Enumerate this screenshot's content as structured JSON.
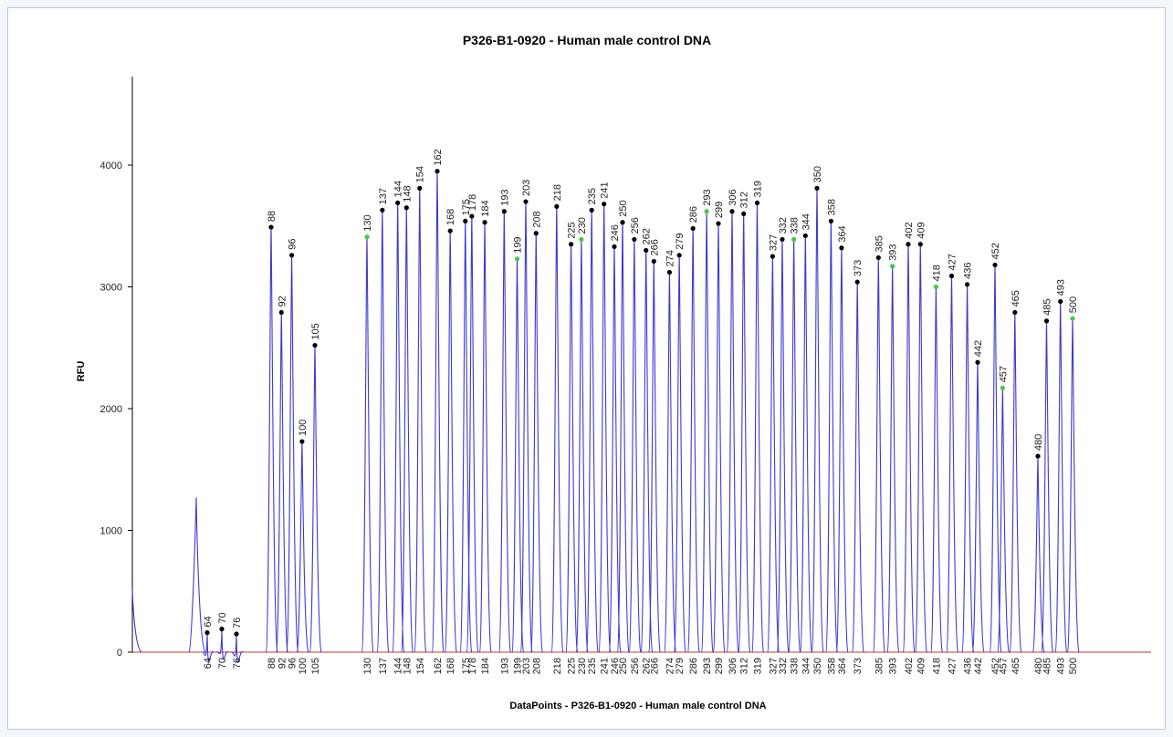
{
  "chart_data": {
    "type": "line",
    "title": "P326-B1-0920 - Human male control DNA",
    "xlabel": "DataPoints - P326-B1-0920 - Human male control DNA",
    "ylabel": "RFU",
    "ylim": [
      0,
      4500
    ],
    "yticks": [
      0,
      1000,
      2000,
      3000,
      4000
    ],
    "grid": false,
    "colors": {
      "trace": "#3b3bd1",
      "baseline": "#c0392b",
      "axis": "#000000",
      "marker": "#000000",
      "marker_flagged": "#44c944"
    },
    "unlabeled_peaks": [
      {
        "pos": 48,
        "y": 520
      },
      {
        "pos": 59,
        "y": 1270
      }
    ],
    "peaks": [
      {
        "label": "64",
        "y": 160,
        "flag": false
      },
      {
        "label": "70",
        "y": 190,
        "flag": false
      },
      {
        "label": "76",
        "y": 150,
        "flag": false
      },
      {
        "label": "88",
        "y": 3490,
        "flag": false
      },
      {
        "label": "92",
        "y": 2790,
        "flag": false
      },
      {
        "label": "96",
        "y": 3260,
        "flag": false
      },
      {
        "label": "100",
        "y": 1730,
        "flag": false
      },
      {
        "label": "105",
        "y": 2520,
        "flag": false
      },
      {
        "label": "130",
        "y": 3410,
        "flag": true
      },
      {
        "label": "137",
        "y": 3630,
        "flag": false
      },
      {
        "label": "144",
        "y": 3690,
        "flag": false
      },
      {
        "label": "148",
        "y": 3650,
        "flag": false
      },
      {
        "label": "154",
        "y": 3810,
        "flag": false
      },
      {
        "label": "162",
        "y": 3950,
        "flag": false
      },
      {
        "label": "168",
        "y": 3460,
        "flag": false
      },
      {
        "label": "175",
        "y": 3540,
        "flag": false
      },
      {
        "label": "178",
        "y": 3580,
        "flag": false
      },
      {
        "label": "184",
        "y": 3530,
        "flag": false
      },
      {
        "label": "193",
        "y": 3620,
        "flag": false
      },
      {
        "label": "199",
        "y": 3230,
        "flag": true
      },
      {
        "label": "203",
        "y": 3700,
        "flag": false
      },
      {
        "label": "208",
        "y": 3440,
        "flag": false
      },
      {
        "label": "218",
        "y": 3660,
        "flag": false
      },
      {
        "label": "225",
        "y": 3350,
        "flag": false
      },
      {
        "label": "230",
        "y": 3390,
        "flag": true
      },
      {
        "label": "235",
        "y": 3630,
        "flag": false
      },
      {
        "label": "241",
        "y": 3680,
        "flag": false
      },
      {
        "label": "246",
        "y": 3330,
        "flag": false
      },
      {
        "label": "250",
        "y": 3530,
        "flag": false
      },
      {
        "label": "256",
        "y": 3390,
        "flag": false
      },
      {
        "label": "262",
        "y": 3300,
        "flag": false
      },
      {
        "label": "266",
        "y": 3210,
        "flag": false
      },
      {
        "label": "274",
        "y": 3120,
        "flag": false
      },
      {
        "label": "279",
        "y": 3260,
        "flag": false
      },
      {
        "label": "286",
        "y": 3480,
        "flag": false
      },
      {
        "label": "293",
        "y": 3620,
        "flag": true
      },
      {
        "label": "299",
        "y": 3520,
        "flag": false
      },
      {
        "label": "306",
        "y": 3620,
        "flag": false
      },
      {
        "label": "312",
        "y": 3600,
        "flag": false
      },
      {
        "label": "319",
        "y": 3690,
        "flag": false
      },
      {
        "label": "327",
        "y": 3250,
        "flag": false
      },
      {
        "label": "332",
        "y": 3390,
        "flag": false
      },
      {
        "label": "338",
        "y": 3390,
        "flag": true
      },
      {
        "label": "344",
        "y": 3420,
        "flag": false
      },
      {
        "label": "350",
        "y": 3810,
        "flag": false
      },
      {
        "label": "358",
        "y": 3540,
        "flag": false
      },
      {
        "label": "364",
        "y": 3320,
        "flag": false
      },
      {
        "label": "373",
        "y": 3040,
        "flag": false
      },
      {
        "label": "385",
        "y": 3240,
        "flag": false
      },
      {
        "label": "393",
        "y": 3170,
        "flag": true
      },
      {
        "label": "402",
        "y": 3350,
        "flag": false
      },
      {
        "label": "409",
        "y": 3350,
        "flag": false
      },
      {
        "label": "418",
        "y": 3000,
        "flag": true
      },
      {
        "label": "427",
        "y": 3090,
        "flag": false
      },
      {
        "label": "436",
        "y": 3020,
        "flag": false
      },
      {
        "label": "442",
        "y": 2380,
        "flag": false
      },
      {
        "label": "452",
        "y": 3180,
        "flag": false
      },
      {
        "label": "457",
        "y": 2170,
        "flag": true
      },
      {
        "label": "465",
        "y": 2790,
        "flag": false
      },
      {
        "label": "480",
        "y": 1610,
        "flag": false
      },
      {
        "label": "485",
        "y": 2720,
        "flag": false
      },
      {
        "label": "493",
        "y": 2880,
        "flag": false
      },
      {
        "label": "500",
        "y": 2740,
        "flag": true
      }
    ]
  }
}
